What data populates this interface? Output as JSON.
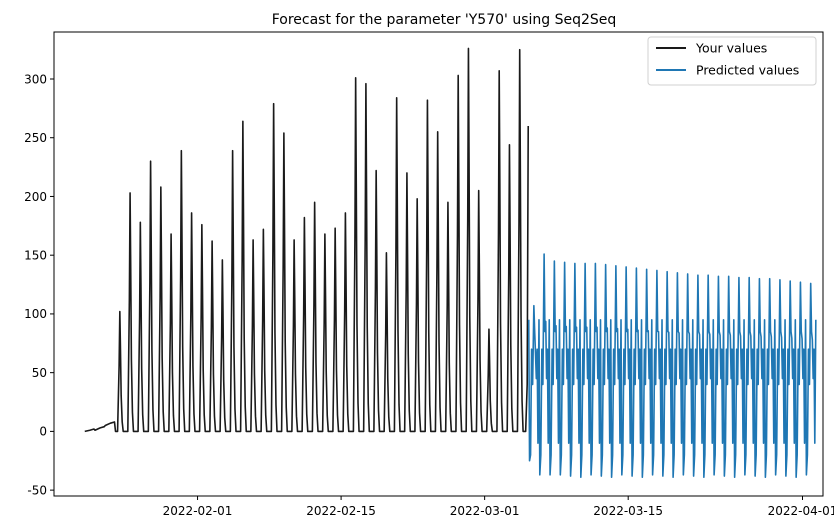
{
  "chart_data": {
    "type": "line",
    "title": "Forecast for the parameter 'Y570' using Seq2Seq",
    "xlabel": "",
    "ylabel": "",
    "x_axis": {
      "kind": "date",
      "range": [
        "2022-01-18",
        "2022-04-03"
      ],
      "ticks": [
        "2022-02-01",
        "2022-02-15",
        "2022-03-01",
        "2022-03-15",
        "2022-04-01"
      ]
    },
    "y_axis": {
      "range": [
        -55,
        340
      ],
      "ticks": [
        -50,
        0,
        50,
        100,
        150,
        200,
        250,
        300
      ]
    },
    "grid": false,
    "legend": {
      "placement": "top-right",
      "entries": [
        "Your values",
        "Predicted values"
      ]
    },
    "series": [
      {
        "name": "Your values",
        "color": "#1a1a1a",
        "start_date": "2022-01-21",
        "end_date": "2022-03-05",
        "daily_peaks": [
          [
            "2022-01-21",
            1
          ],
          [
            "2022-01-22",
            3
          ],
          [
            "2022-01-23",
            7
          ],
          [
            "2022-01-24",
            102
          ],
          [
            "2022-01-25",
            203
          ],
          [
            "2022-01-26",
            178
          ],
          [
            "2022-01-27",
            230
          ],
          [
            "2022-01-28",
            208
          ],
          [
            "2022-01-29",
            168
          ],
          [
            "2022-01-30",
            239
          ],
          [
            "2022-01-31",
            186
          ],
          [
            "2022-02-01",
            176
          ],
          [
            "2022-02-02",
            162
          ],
          [
            "2022-02-03",
            146
          ],
          [
            "2022-02-04",
            239
          ],
          [
            "2022-02-05",
            264
          ],
          [
            "2022-02-06",
            163
          ],
          [
            "2022-02-07",
            172
          ],
          [
            "2022-02-08",
            279
          ],
          [
            "2022-02-09",
            254
          ],
          [
            "2022-02-10",
            163
          ],
          [
            "2022-02-11",
            182
          ],
          [
            "2022-02-12",
            195
          ],
          [
            "2022-02-13",
            168
          ],
          [
            "2022-02-14",
            173
          ],
          [
            "2022-02-15",
            186
          ],
          [
            "2022-02-16",
            301
          ],
          [
            "2022-02-17",
            296
          ],
          [
            "2022-02-18",
            222
          ],
          [
            "2022-02-19",
            152
          ],
          [
            "2022-02-20",
            284
          ],
          [
            "2022-02-21",
            220
          ],
          [
            "2022-02-22",
            198
          ],
          [
            "2022-02-23",
            282
          ],
          [
            "2022-02-24",
            255
          ],
          [
            "2022-02-25",
            195
          ],
          [
            "2022-02-26",
            303
          ],
          [
            "2022-02-27",
            326
          ],
          [
            "2022-02-28",
            205
          ],
          [
            "2022-03-01",
            87
          ],
          [
            "2022-03-02",
            307
          ],
          [
            "2022-03-03",
            244
          ],
          [
            "2022-03-04",
            325
          ]
        ]
      },
      {
        "name": "Predicted values",
        "color": "#1f77b4",
        "start_date": "2022-03-05",
        "end_date": "2022-04-01",
        "daily_peaks": [
          [
            "2022-03-05",
            107
          ],
          [
            "2022-03-06",
            151
          ],
          [
            "2022-03-07",
            145
          ],
          [
            "2022-03-08",
            144
          ],
          [
            "2022-03-09",
            143
          ],
          [
            "2022-03-10",
            143
          ],
          [
            "2022-03-11",
            143
          ],
          [
            "2022-03-12",
            142
          ],
          [
            "2022-03-13",
            141
          ],
          [
            "2022-03-14",
            140
          ],
          [
            "2022-03-15",
            139
          ],
          [
            "2022-03-16",
            138
          ],
          [
            "2022-03-17",
            137
          ],
          [
            "2022-03-18",
            136
          ],
          [
            "2022-03-19",
            135
          ],
          [
            "2022-03-20",
            134
          ],
          [
            "2022-03-21",
            133
          ],
          [
            "2022-03-22",
            133
          ],
          [
            "2022-03-23",
            132
          ],
          [
            "2022-03-24",
            132
          ],
          [
            "2022-03-25",
            131
          ],
          [
            "2022-03-26",
            131
          ],
          [
            "2022-03-27",
            130
          ],
          [
            "2022-03-28",
            130
          ],
          [
            "2022-03-29",
            129
          ],
          [
            "2022-03-30",
            128
          ],
          [
            "2022-03-31",
            127
          ],
          [
            "2022-04-01",
            126
          ]
        ],
        "daily_troughs": -37
      }
    ]
  }
}
